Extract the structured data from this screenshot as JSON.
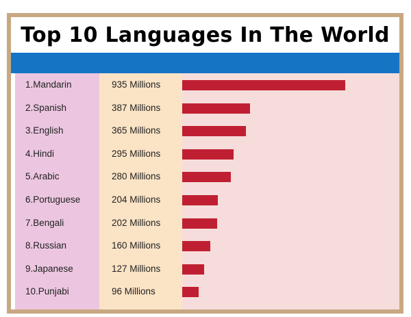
{
  "chart_data": {
    "type": "bar",
    "title": "Top 10 Languages In The World",
    "categories": [
      "1.Mandarin",
      "2.Spanish",
      "3.English",
      "4.Hindi",
      "5.Arabic",
      "6.Portuguese",
      "7.Bengali",
      "8.Russian",
      "9.Japanese",
      "10.Punjabi"
    ],
    "value_labels": [
      "935 Millions",
      "387 Millions",
      "365 Millions",
      "295 Millions",
      "280 Millions",
      "204 Millions",
      "202 Millions",
      "160 Millions",
      "127 Millions",
      "96 Millions"
    ],
    "values": [
      935,
      387,
      365,
      295,
      280,
      204,
      202,
      160,
      127,
      96
    ],
    "unit": "Millions",
    "orientation": "horizontal",
    "xlim": [
      0,
      1000
    ],
    "grid": false,
    "colors": {
      "bar": "#c01f33",
      "header_band": "#1674c5",
      "frame": "#c8a882",
      "name_column": "#ecc6e0",
      "value_column": "#fbe3c5",
      "bar_column": "#f6dddb"
    }
  }
}
